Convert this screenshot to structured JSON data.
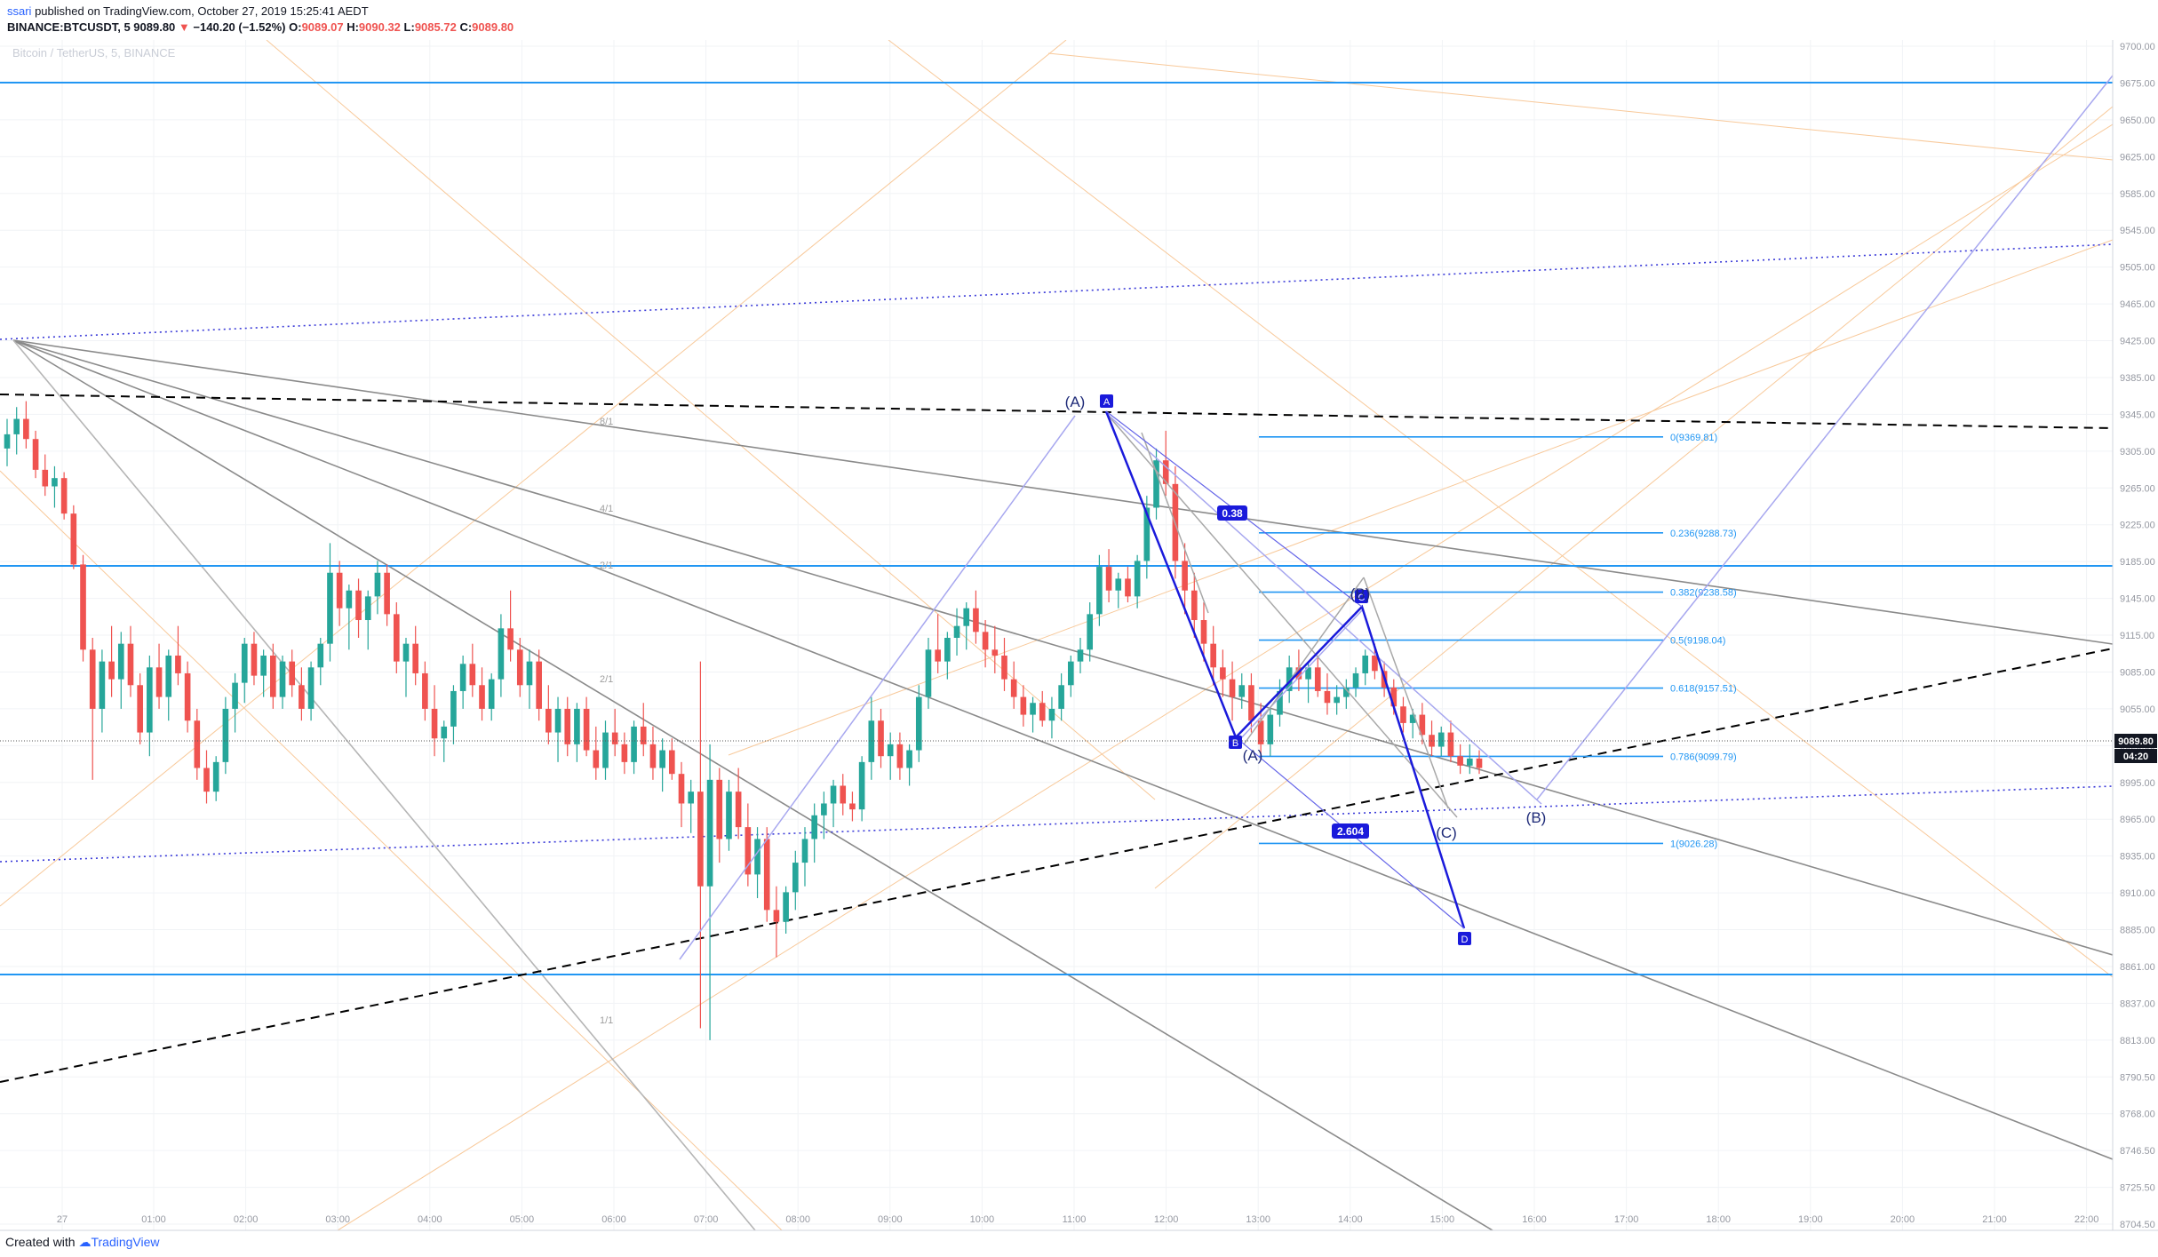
{
  "header": {
    "user": "ssari",
    "published": "published on TradingView.com, October 27, 2019 15:25:41 AEDT",
    "symbol": "BINANCE:BTCUSDT, 5",
    "last": "9089.80",
    "change_arrow": "▼",
    "change": "−140.20 (−1.52%)",
    "o_label": "O:",
    "o": "9089.07",
    "h_label": "H:",
    "h": "9090.32",
    "l_label": "L:",
    "l": "9085.72",
    "c_label": "C:",
    "c": "9089.80"
  },
  "watermark": "Bitcoin / TetherUS, 5, BINANCE",
  "footer": {
    "created": "Created with",
    "brand": "TradingView"
  },
  "price_badge": "9089.80",
  "countdown_badge": "04:20",
  "colors": {
    "up": "#26a69a",
    "down": "#ef5350",
    "hline": "#2196f3",
    "pattern": "#1a1adb",
    "trend": "#000000",
    "gann": "#9e9e9e",
    "orange": "#f8c99a"
  },
  "chart_data": {
    "type": "candlestick",
    "title": "Bitcoin / TetherUS, 5, BINANCE",
    "x_ticks": [
      "27",
      "01:00",
      "02:00",
      "03:00",
      "04:00",
      "05:00",
      "06:00",
      "07:00",
      "08:00",
      "09:00",
      "10:00",
      "11:00",
      "12:00",
      "13:00",
      "14:00",
      "15:00",
      "16:00",
      "17:00",
      "18:00",
      "19:00",
      "20:00",
      "21:00",
      "22:00"
    ],
    "y_ticks": [
      "9700.00",
      "9675.00",
      "9650.00",
      "9625.00",
      "9585.00",
      "9545.00",
      "9505.00",
      "9465.00",
      "9425.00",
      "9385.00",
      "9345.00",
      "9305.00",
      "9265.00",
      "9225.00",
      "9185.00",
      "9145.00",
      "9115.00",
      "9085.00",
      "9055.00",
      "9025.00",
      "8995.00",
      "8965.00",
      "8935.00",
      "8910.00",
      "8885.00",
      "8861.00",
      "8837.00",
      "8813.00",
      "8790.50",
      "8768.00",
      "8746.50",
      "8725.50",
      "8704.50"
    ],
    "current_price": 9089.8,
    "fib_levels": [
      {
        "label": "0(9369.81)",
        "ratio": 0,
        "price": 9369.81
      },
      {
        "label": "0.236(9288.73)",
        "ratio": 0.236,
        "price": 9288.73
      },
      {
        "label": "0.382(9238.58)",
        "ratio": 0.382,
        "price": 9238.58
      },
      {
        "label": "0.5(9198.04)",
        "ratio": 0.5,
        "price": 9198.04
      },
      {
        "label": "0.618(9157.51)",
        "ratio": 0.618,
        "price": 9157.51
      },
      {
        "label": "0.786(9099.79)",
        "ratio": 0.786,
        "price": 9099.79
      },
      {
        "label": "1(9026.28)",
        "ratio": 1,
        "price": 9026.28
      }
    ],
    "harmonic_points": [
      "A",
      "B",
      "C",
      "D"
    ],
    "harmonic_ratios": [
      "0.38",
      "2.604"
    ],
    "wave_labels": [
      "(A)",
      "(A)",
      "(B)",
      "(C)",
      "(B)"
    ],
    "gann_labels": [
      "8/1",
      "4/1",
      "2/1",
      "2/1",
      "1/1"
    ],
    "candles": [
      [
        9360,
        9385,
        9345,
        9372
      ],
      [
        9372,
        9395,
        9355,
        9385
      ],
      [
        9385,
        9400,
        9360,
        9368
      ],
      [
        9368,
        9375,
        9335,
        9342
      ],
      [
        9342,
        9355,
        9320,
        9328
      ],
      [
        9328,
        9345,
        9310,
        9335
      ],
      [
        9335,
        9340,
        9300,
        9305
      ],
      [
        9305,
        9312,
        9258,
        9262
      ],
      [
        9262,
        9270,
        9180,
        9190
      ],
      [
        9190,
        9200,
        9080,
        9140
      ],
      [
        9140,
        9190,
        9120,
        9180
      ],
      [
        9180,
        9210,
        9150,
        9165
      ],
      [
        9165,
        9205,
        9140,
        9195
      ],
      [
        9195,
        9210,
        9150,
        9160
      ],
      [
        9160,
        9170,
        9110,
        9120
      ],
      [
        9120,
        9185,
        9100,
        9175
      ],
      [
        9175,
        9195,
        9140,
        9150
      ],
      [
        9150,
        9190,
        9130,
        9185
      ],
      [
        9185,
        9210,
        9160,
        9170
      ],
      [
        9170,
        9180,
        9120,
        9130
      ],
      [
        9130,
        9140,
        9080,
        9090
      ],
      [
        9090,
        9105,
        9060,
        9070
      ],
      [
        9070,
        9100,
        9062,
        9095
      ],
      [
        9095,
        9150,
        9085,
        9140
      ],
      [
        9140,
        9170,
        9120,
        9162
      ],
      [
        9162,
        9200,
        9145,
        9195
      ],
      [
        9195,
        9205,
        9160,
        9168
      ],
      [
        9168,
        9190,
        9150,
        9185
      ],
      [
        9185,
        9195,
        9140,
        9150
      ],
      [
        9150,
        9185,
        9140,
        9180
      ],
      [
        9180,
        9190,
        9150,
        9160
      ],
      [
        9160,
        9175,
        9130,
        9140
      ],
      [
        9140,
        9180,
        9130,
        9175
      ],
      [
        9175,
        9200,
        9160,
        9195
      ],
      [
        9195,
        9280,
        9180,
        9255
      ],
      [
        9255,
        9265,
        9210,
        9225
      ],
      [
        9225,
        9245,
        9190,
        9240
      ],
      [
        9240,
        9250,
        9200,
        9215
      ],
      [
        9215,
        9240,
        9190,
        9235
      ],
      [
        9235,
        9265,
        9220,
        9255
      ],
      [
        9255,
        9262,
        9210,
        9220
      ],
      [
        9220,
        9230,
        9170,
        9180
      ],
      [
        9180,
        9200,
        9150,
        9195
      ],
      [
        9195,
        9210,
        9160,
        9170
      ],
      [
        9170,
        9180,
        9130,
        9140
      ],
      [
        9140,
        9160,
        9100,
        9115
      ],
      [
        9115,
        9130,
        9095,
        9125
      ],
      [
        9125,
        9160,
        9110,
        9155
      ],
      [
        9155,
        9185,
        9140,
        9178
      ],
      [
        9178,
        9195,
        9150,
        9160
      ],
      [
        9160,
        9175,
        9130,
        9140
      ],
      [
        9140,
        9170,
        9130,
        9165
      ],
      [
        9165,
        9220,
        9150,
        9208
      ],
      [
        9208,
        9240,
        9180,
        9190
      ],
      [
        9190,
        9200,
        9150,
        9160
      ],
      [
        9160,
        9190,
        9140,
        9180
      ],
      [
        9180,
        9190,
        9130,
        9140
      ],
      [
        9140,
        9160,
        9110,
        9120
      ],
      [
        9120,
        9150,
        9095,
        9140
      ],
      [
        9140,
        9150,
        9100,
        9110
      ],
      [
        9110,
        9145,
        9095,
        9140
      ],
      [
        9140,
        9150,
        9100,
        9105
      ],
      [
        9105,
        9125,
        9080,
        9090
      ],
      [
        9090,
        9130,
        9080,
        9120
      ],
      [
        9120,
        9140,
        9100,
        9110
      ],
      [
        9110,
        9120,
        9085,
        9095
      ],
      [
        9095,
        9130,
        9085,
        9125
      ],
      [
        9125,
        9145,
        9100,
        9110
      ],
      [
        9110,
        9125,
        9080,
        9090
      ],
      [
        9090,
        9115,
        9070,
        9105
      ],
      [
        9105,
        9115,
        9080,
        9085
      ],
      [
        9085,
        9095,
        9040,
        9060
      ],
      [
        9060,
        9080,
        9035,
        9070
      ],
      [
        9070,
        9180,
        8870,
        8990
      ],
      [
        8990,
        9110,
        8860,
        9080
      ],
      [
        9080,
        9090,
        9010,
        9030
      ],
      [
        9030,
        9080,
        9020,
        9070
      ],
      [
        9070,
        9090,
        9030,
        9040
      ],
      [
        9040,
        9060,
        8990,
        9000
      ],
      [
        9000,
        9040,
        8980,
        9030
      ],
      [
        9030,
        9040,
        8960,
        8970
      ],
      [
        8970,
        8990,
        8930,
        8960
      ],
      [
        8960,
        8990,
        8950,
        8985
      ],
      [
        8985,
        9020,
        8970,
        9010
      ],
      [
        9010,
        9040,
        8990,
        9030
      ],
      [
        9030,
        9060,
        9010,
        9050
      ],
      [
        9050,
        9070,
        9030,
        9060
      ],
      [
        9060,
        9080,
        9040,
        9075
      ],
      [
        9075,
        9085,
        9050,
        9060
      ],
      [
        9060,
        9070,
        9045,
        9055
      ],
      [
        9055,
        9100,
        9045,
        9095
      ],
      [
        9095,
        9150,
        9080,
        9130
      ],
      [
        9130,
        9140,
        9090,
        9100
      ],
      [
        9100,
        9120,
        9080,
        9110
      ],
      [
        9110,
        9120,
        9080,
        9090
      ],
      [
        9090,
        9110,
        9075,
        9105
      ],
      [
        9105,
        9160,
        9095,
        9150
      ],
      [
        9150,
        9200,
        9140,
        9190
      ],
      [
        9190,
        9220,
        9170,
        9180
      ],
      [
        9180,
        9205,
        9165,
        9200
      ],
      [
        9200,
        9225,
        9185,
        9210
      ],
      [
        9210,
        9230,
        9190,
        9225
      ],
      [
        9225,
        9240,
        9195,
        9205
      ],
      [
        9205,
        9215,
        9175,
        9190
      ],
      [
        9190,
        9210,
        9170,
        9185
      ],
      [
        9185,
        9200,
        9155,
        9165
      ],
      [
        9165,
        9180,
        9140,
        9150
      ],
      [
        9150,
        9160,
        9125,
        9135
      ],
      [
        9135,
        9150,
        9120,
        9145
      ],
      [
        9145,
        9155,
        9125,
        9130
      ],
      [
        9130,
        9150,
        9115,
        9140
      ],
      [
        9140,
        9170,
        9130,
        9160
      ],
      [
        9160,
        9185,
        9150,
        9180
      ],
      [
        9180,
        9200,
        9170,
        9190
      ],
      [
        9190,
        9230,
        9180,
        9220
      ],
      [
        9220,
        9270,
        9210,
        9260
      ],
      [
        9260,
        9275,
        9230,
        9240
      ],
      [
        9240,
        9255,
        9225,
        9250
      ],
      [
        9250,
        9260,
        9230,
        9235
      ],
      [
        9235,
        9270,
        9225,
        9265
      ],
      [
        9265,
        9320,
        9250,
        9310
      ],
      [
        9310,
        9360,
        9300,
        9350
      ],
      [
        9350,
        9375,
        9320,
        9330
      ],
      [
        9330,
        9345,
        9250,
        9265
      ],
      [
        9265,
        9280,
        9220,
        9240
      ],
      [
        9240,
        9255,
        9200,
        9215
      ],
      [
        9215,
        9230,
        9180,
        9195
      ],
      [
        9195,
        9210,
        9160,
        9175
      ],
      [
        9175,
        9190,
        9150,
        9165
      ],
      [
        9165,
        9180,
        9130,
        9150
      ],
      [
        9150,
        9170,
        9140,
        9160
      ],
      [
        9160,
        9170,
        9120,
        9130
      ],
      [
        9130,
        9145,
        9100,
        9110
      ],
      [
        9110,
        9140,
        9100,
        9135
      ],
      [
        9135,
        9165,
        9125,
        9155
      ],
      [
        9155,
        9185,
        9145,
        9175
      ],
      [
        9175,
        9190,
        9155,
        9165
      ],
      [
        9165,
        9180,
        9145,
        9175
      ],
      [
        9175,
        9185,
        9150,
        9155
      ],
      [
        9155,
        9170,
        9135,
        9145
      ],
      [
        9145,
        9160,
        9135,
        9150
      ],
      [
        9150,
        9165,
        9140,
        9158
      ],
      [
        9158,
        9175,
        9150,
        9170
      ],
      [
        9170,
        9190,
        9160,
        9185
      ],
      [
        9185,
        9195,
        9165,
        9172
      ],
      [
        9172,
        9180,
        9150,
        9158
      ],
      [
        9158,
        9165,
        9135,
        9142
      ],
      [
        9142,
        9150,
        9120,
        9128
      ],
      [
        9128,
        9140,
        9115,
        9135
      ],
      [
        9135,
        9145,
        9110,
        9118
      ],
      [
        9118,
        9130,
        9100,
        9108
      ],
      [
        9108,
        9125,
        9100,
        9120
      ],
      [
        9120,
        9130,
        9095,
        9100
      ],
      [
        9100,
        9110,
        9085,
        9092
      ],
      [
        9092,
        9110,
        9085,
        9098
      ],
      [
        9098,
        9105,
        9085,
        9090
      ]
    ]
  }
}
